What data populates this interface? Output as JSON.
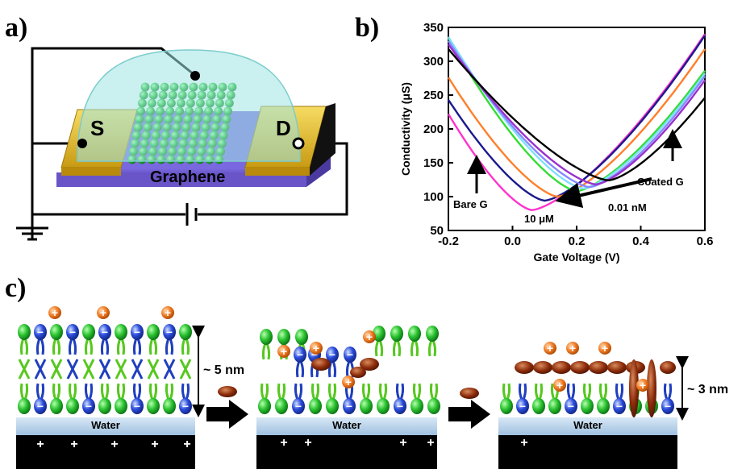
{
  "panels": {
    "a": "a)",
    "b": "b)",
    "c": "c)"
  },
  "device": {
    "source_label": "S",
    "drain_label": "D",
    "channel_label": "Graphene",
    "colors": {
      "electrode": "#e9c12e",
      "substrate": "#8f7fe0",
      "dome": "#9fe3e3",
      "sphere": "#22c444"
    }
  },
  "chart_data": {
    "type": "line",
    "title": "",
    "xlabel": "Gate Voltage (V)",
    "ylabel": "Conductivity (μS)",
    "xlim": [
      -0.2,
      0.6
    ],
    "ylim": [
      50,
      350
    ],
    "x_ticks": [
      "-0.2",
      "0.0",
      "0.2",
      "0.4",
      "0.6"
    ],
    "y_ticks": [
      "50",
      "100",
      "150",
      "200",
      "250",
      "300",
      "350"
    ],
    "grid": false,
    "series": [
      {
        "color": "#ff33cc",
        "min_x": 0.06,
        "min_y": 80,
        "left_y": 222,
        "right_y": 340
      },
      {
        "color": "#1a1a8c",
        "min_x": 0.1,
        "min_y": 94,
        "left_y": 243,
        "right_y": 338
      },
      {
        "color": "#ff7f2a",
        "min_x": 0.14,
        "min_y": 100,
        "left_y": 276,
        "right_y": 318
      },
      {
        "color": "#33dd33",
        "min_x": 0.2,
        "min_y": 108,
        "left_y": 334,
        "right_y": 286
      },
      {
        "color": "#7fdfff",
        "min_x": 0.22,
        "min_y": 112,
        "left_y": 336,
        "right_y": 282
      },
      {
        "color": "#8888ff",
        "min_x": 0.24,
        "min_y": 114,
        "left_y": 330,
        "right_y": 278
      },
      {
        "color": "#9932cc",
        "min_x": 0.26,
        "min_y": 118,
        "left_y": 325,
        "right_y": 272
      },
      {
        "color": "#000000",
        "min_x": 0.3,
        "min_y": 124,
        "left_y": 318,
        "right_y": 246
      }
    ],
    "annotations": {
      "bare": "Bare G",
      "coated": "Coated G",
      "high_conc": "10 μM",
      "low_conc": "0.01 nM"
    }
  },
  "membrane": {
    "thickness_5nm": "~ 5 nm",
    "thickness_3nm": "~ 3 nm",
    "water_label": "Water",
    "graphene_label": "Graphene",
    "plus_symbol": "+",
    "minus_symbol": "−",
    "colors": {
      "headgroup": "#2cc41a",
      "anionic_head": "#2b4cdb",
      "tail_blue": "#1f3fbf",
      "tail_green": "#56c81e",
      "cation": "#f07a22",
      "peptide": "#8a2b0a",
      "water": "#b8d3ea"
    }
  }
}
